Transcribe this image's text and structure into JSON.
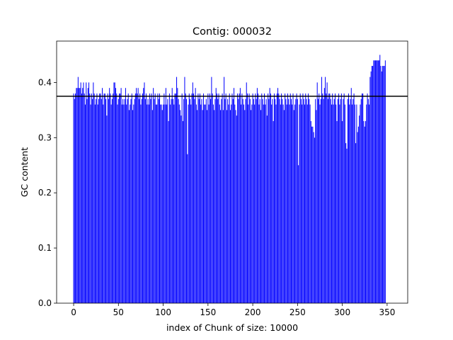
{
  "chart_data": {
    "type": "bar",
    "title": "Contig: 000032",
    "xlabel": "index of Chunk of size: 10000",
    "ylabel": "GC content",
    "xlim": [
      -19,
      373
    ],
    "ylim": [
      0.0,
      0.475
    ],
    "xticks": [
      0,
      50,
      100,
      150,
      200,
      250,
      300,
      350
    ],
    "yticks": [
      0.0,
      0.1,
      0.2,
      0.3,
      0.4
    ],
    "ytick_labels": [
      "0.0",
      "0.1",
      "0.2",
      "0.3",
      "0.4"
    ],
    "bar_color": "#0000ff",
    "grid": false,
    "reference_line": {
      "y": 0.375,
      "color": "#000000"
    },
    "x_start": 0,
    "values": [
      0.38,
      0.37,
      0.38,
      0.39,
      0.39,
      0.41,
      0.39,
      0.39,
      0.4,
      0.38,
      0.39,
      0.4,
      0.38,
      0.36,
      0.4,
      0.37,
      0.39,
      0.4,
      0.38,
      0.36,
      0.38,
      0.37,
      0.4,
      0.38,
      0.36,
      0.37,
      0.38,
      0.36,
      0.37,
      0.38,
      0.38,
      0.37,
      0.39,
      0.36,
      0.38,
      0.38,
      0.37,
      0.34,
      0.38,
      0.37,
      0.39,
      0.38,
      0.36,
      0.37,
      0.38,
      0.4,
      0.4,
      0.39,
      0.38,
      0.36,
      0.37,
      0.38,
      0.38,
      0.39,
      0.36,
      0.37,
      0.36,
      0.37,
      0.39,
      0.36,
      0.37,
      0.38,
      0.35,
      0.36,
      0.37,
      0.38,
      0.35,
      0.36,
      0.37,
      0.38,
      0.39,
      0.38,
      0.39,
      0.37,
      0.38,
      0.36,
      0.37,
      0.38,
      0.39,
      0.4,
      0.37,
      0.38,
      0.36,
      0.37,
      0.36,
      0.38,
      0.37,
      0.38,
      0.35,
      0.39,
      0.37,
      0.38,
      0.36,
      0.36,
      0.38,
      0.37,
      0.38,
      0.36,
      0.36,
      0.35,
      0.36,
      0.38,
      0.36,
      0.39,
      0.36,
      0.37,
      0.33,
      0.38,
      0.36,
      0.37,
      0.39,
      0.37,
      0.36,
      0.38,
      0.38,
      0.41,
      0.39,
      0.37,
      0.36,
      0.35,
      0.34,
      0.38,
      0.33,
      0.37,
      0.41,
      0.38,
      0.37,
      0.27,
      0.36,
      0.38,
      0.37,
      0.36,
      0.38,
      0.4,
      0.38,
      0.37,
      0.39,
      0.36,
      0.35,
      0.38,
      0.37,
      0.38,
      0.36,
      0.37,
      0.35,
      0.38,
      0.36,
      0.36,
      0.37,
      0.35,
      0.38,
      0.36,
      0.38,
      0.37,
      0.41,
      0.38,
      0.36,
      0.35,
      0.37,
      0.39,
      0.38,
      0.37,
      0.38,
      0.36,
      0.35,
      0.37,
      0.38,
      0.35,
      0.41,
      0.37,
      0.38,
      0.35,
      0.37,
      0.36,
      0.38,
      0.35,
      0.36,
      0.38,
      0.37,
      0.39,
      0.36,
      0.35,
      0.34,
      0.38,
      0.37,
      0.38,
      0.39,
      0.36,
      0.38,
      0.37,
      0.36,
      0.35,
      0.37,
      0.4,
      0.38,
      0.36,
      0.38,
      0.37,
      0.35,
      0.36,
      0.38,
      0.37,
      0.36,
      0.38,
      0.37,
      0.39,
      0.38,
      0.36,
      0.37,
      0.35,
      0.38,
      0.37,
      0.36,
      0.38,
      0.36,
      0.37,
      0.34,
      0.38,
      0.37,
      0.39,
      0.38,
      0.36,
      0.37,
      0.33,
      0.38,
      0.37,
      0.36,
      0.38,
      0.39,
      0.38,
      0.37,
      0.36,
      0.38,
      0.37,
      0.36,
      0.35,
      0.38,
      0.37,
      0.36,
      0.38,
      0.37,
      0.36,
      0.38,
      0.37,
      0.36,
      0.38,
      0.35,
      0.36,
      0.37,
      0.38,
      0.37,
      0.25,
      0.36,
      0.38,
      0.37,
      0.36,
      0.38,
      0.37,
      0.36,
      0.38,
      0.37,
      0.36,
      0.38,
      0.37,
      0.36,
      0.33,
      0.32,
      0.32,
      0.31,
      0.3,
      0.37,
      0.35,
      0.4,
      0.37,
      0.38,
      0.36,
      0.37,
      0.41,
      0.38,
      0.37,
      0.39,
      0.41,
      0.38,
      0.4,
      0.37,
      0.38,
      0.38,
      0.37,
      0.36,
      0.38,
      0.36,
      0.37,
      0.38,
      0.36,
      0.33,
      0.37,
      0.38,
      0.36,
      0.37,
      0.38,
      0.33,
      0.37,
      0.38,
      0.36,
      0.29,
      0.28,
      0.37,
      0.38,
      0.36,
      0.37,
      0.39,
      0.36,
      0.37,
      0.38,
      0.36,
      0.29,
      0.36,
      0.31,
      0.32,
      0.34,
      0.36,
      0.37,
      0.38,
      0.38,
      0.33,
      0.32,
      0.33,
      0.36,
      0.38,
      0.37,
      0.36,
      0.41,
      0.42,
      0.43,
      0.43,
      0.44,
      0.44,
      0.44,
      0.44,
      0.44,
      0.44,
      0.44,
      0.45,
      0.43,
      0.42,
      0.43,
      0.43,
      0.43,
      0.44
    ]
  }
}
